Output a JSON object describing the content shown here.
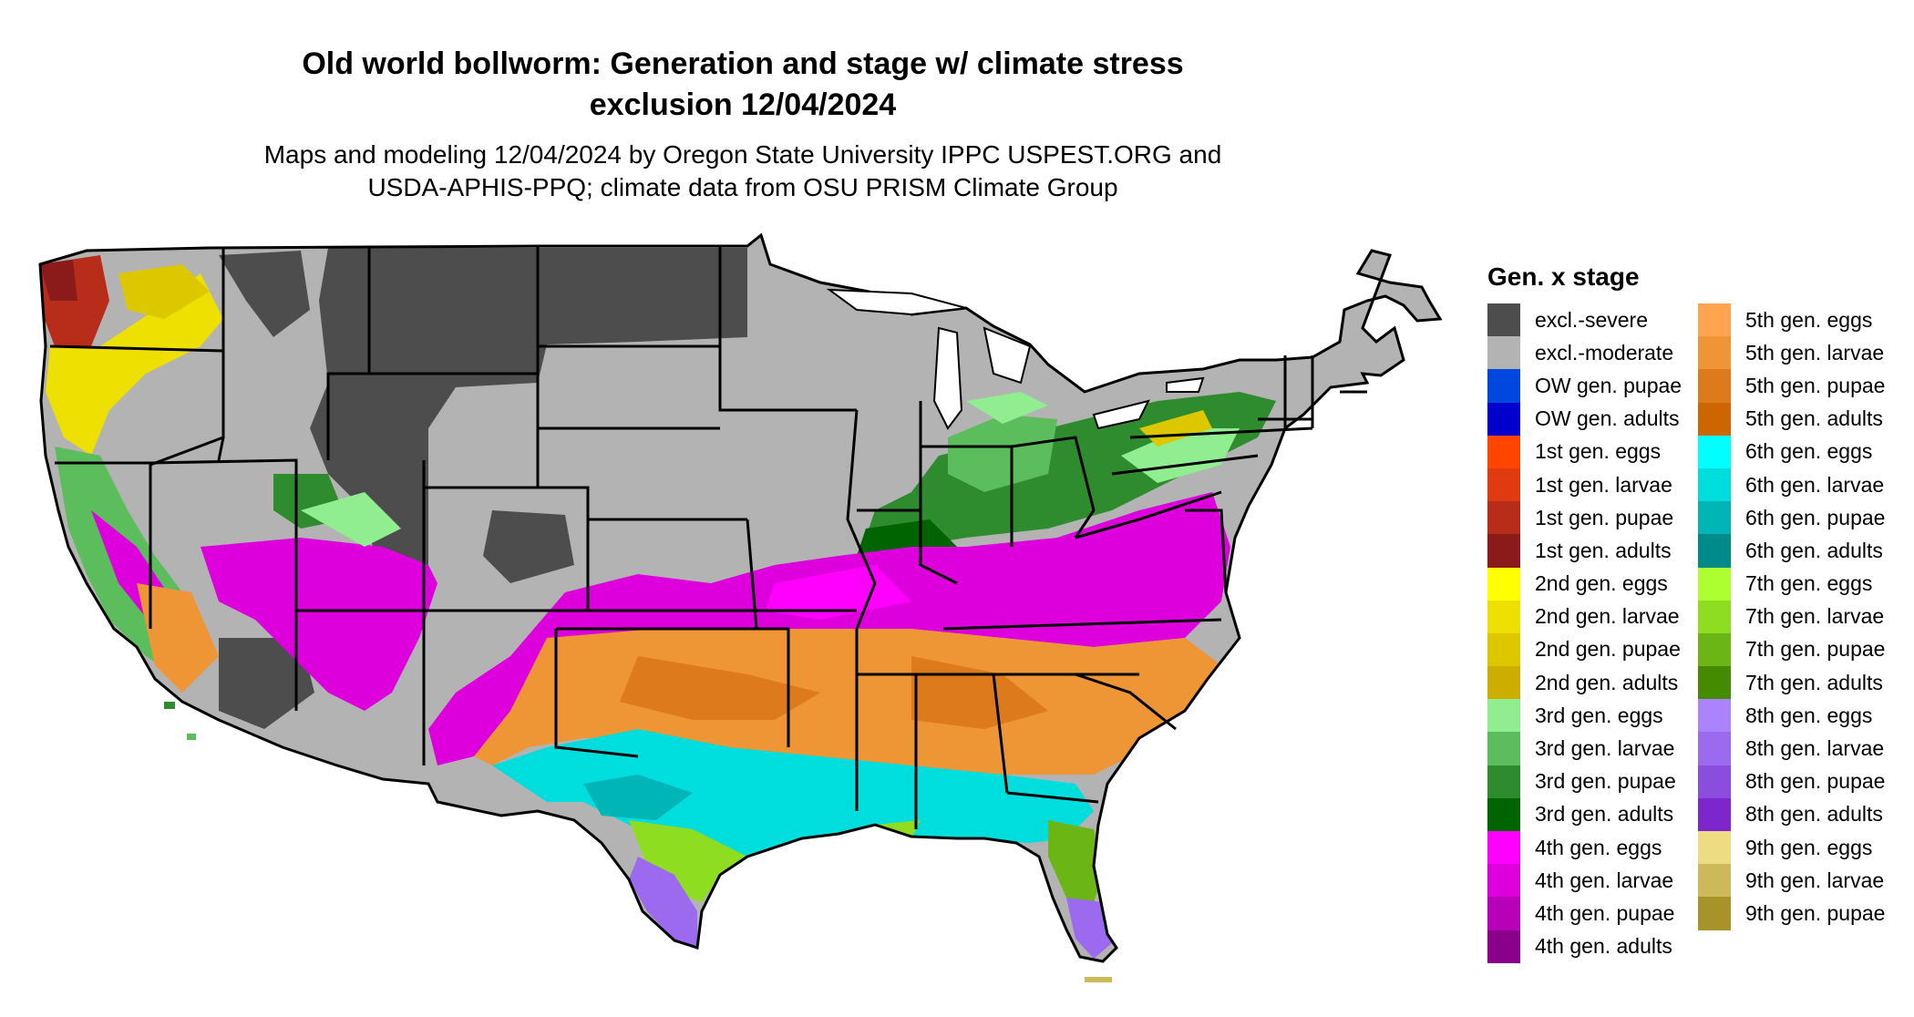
{
  "title_line1": "Old world bollworm: Generation and stage w/ climate stress",
  "title_line2": "exclusion 12/04/2024",
  "subtitle_line1": "Maps and modeling 12/04/2024 by Oregon State University IPPC USPEST.ORG and",
  "subtitle_line2": "USDA-APHIS-PPQ; climate data from OSU PRISM Climate Group",
  "legend": {
    "title": "Gen. x stage",
    "col1": [
      {
        "label": "excl.-severe",
        "color": "#4d4d4d"
      },
      {
        "label": "excl.-moderate",
        "color": "#b3b3b3"
      },
      {
        "label": "OW gen. pupae",
        "color": "#0047e0"
      },
      {
        "label": "OW gen. adults",
        "color": "#0000cd"
      },
      {
        "label": "1st gen. eggs",
        "color": "#ff4500"
      },
      {
        "label": "1st gen. larvae",
        "color": "#e03a10"
      },
      {
        "label": "1st gen. pupae",
        "color": "#b82c1a"
      },
      {
        "label": "1st gen. adults",
        "color": "#8b1a1a"
      },
      {
        "label": "2nd gen. eggs",
        "color": "#ffff00"
      },
      {
        "label": "2nd gen. larvae",
        "color": "#eee000"
      },
      {
        "label": "2nd gen. pupae",
        "color": "#ddc800"
      },
      {
        "label": "2nd gen. adults",
        "color": "#cdad00"
      },
      {
        "label": "3rd gen. eggs",
        "color": "#90ee90"
      },
      {
        "label": "3rd gen. larvae",
        "color": "#5cbd5c"
      },
      {
        "label": "3rd gen. pupae",
        "color": "#2e8b2e"
      },
      {
        "label": "3rd gen. adults",
        "color": "#006400"
      },
      {
        "label": "4th gen. eggs",
        "color": "#ff00ff"
      },
      {
        "label": "4th gen. larvae",
        "color": "#dd00dd"
      },
      {
        "label": "4th gen. pupae",
        "color": "#b800b8"
      },
      {
        "label": "4th gen. adults",
        "color": "#8b008b"
      }
    ],
    "col2": [
      {
        "label": "5th gen. eggs",
        "color": "#ffa54f"
      },
      {
        "label": "5th gen. larvae",
        "color": "#ee9535"
      },
      {
        "label": "5th gen. pupae",
        "color": "#dd7a1c"
      },
      {
        "label": "5th gen. adults",
        "color": "#cd6600"
      },
      {
        "label": "6th gen. eggs",
        "color": "#00ffff"
      },
      {
        "label": "6th gen. larvae",
        "color": "#00dddd"
      },
      {
        "label": "6th gen. pupae",
        "color": "#00b5b5"
      },
      {
        "label": "6th gen. adults",
        "color": "#008b8b"
      },
      {
        "label": "7th gen. eggs",
        "color": "#adff2f"
      },
      {
        "label": "7th gen. larvae",
        "color": "#8fdd20"
      },
      {
        "label": "7th gen. pupae",
        "color": "#6bb515"
      },
      {
        "label": "7th gen. adults",
        "color": "#458b00"
      },
      {
        "label": "8th gen. eggs",
        "color": "#ab82ff"
      },
      {
        "label": "8th gen. larvae",
        "color": "#9b6aee"
      },
      {
        "label": "8th gen. pupae",
        "color": "#8a4ddd"
      },
      {
        "label": "8th gen. adults",
        "color": "#7d26cd"
      },
      {
        "label": "9th gen. eggs",
        "color": "#eedc82"
      },
      {
        "label": "9th gen. larvae",
        "color": "#cdb95a"
      },
      {
        "label": "9th gen. pupae",
        "color": "#a8922a"
      }
    ]
  }
}
